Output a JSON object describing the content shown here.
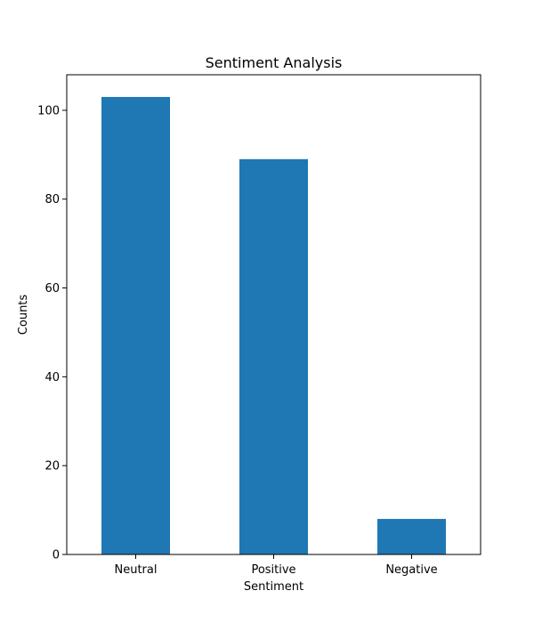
{
  "chart_data": {
    "type": "bar",
    "title": "Sentiment Analysis",
    "xlabel": "Sentiment",
    "ylabel": "Counts",
    "categories": [
      "Neutral",
      "Positive",
      "Negative"
    ],
    "values": [
      103,
      89,
      8
    ],
    "ylim": [
      0,
      108
    ],
    "yticks": [
      0,
      20,
      40,
      60,
      80,
      100
    ],
    "bar_color": "#1f77b4",
    "grid": false,
    "legend": "none"
  }
}
